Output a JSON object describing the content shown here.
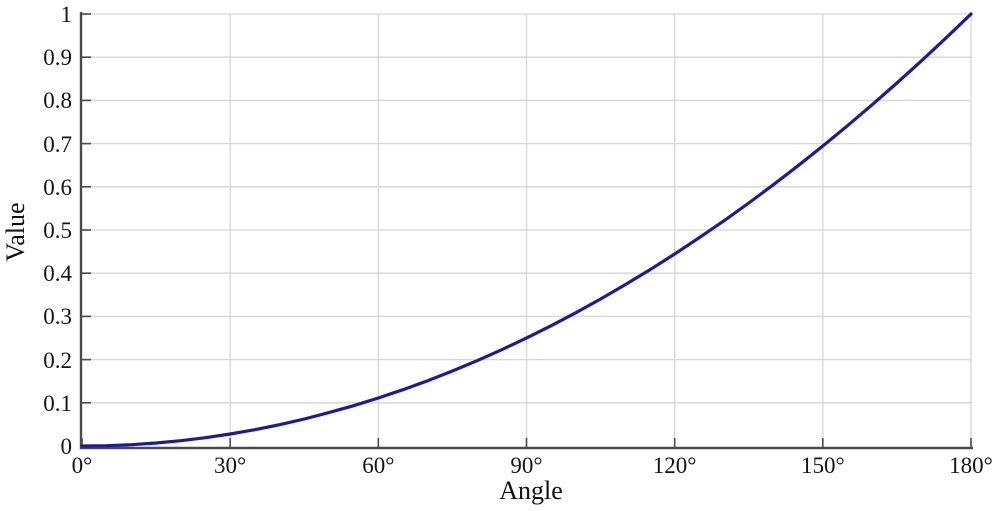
{
  "figure": {
    "background_color": "#ffffff",
    "axis_color": "#4a4a4a",
    "grid_color": "#d6d6d6",
    "tick_color": "#4a4a4a",
    "text_color": "#141414"
  },
  "chart_data": {
    "type": "line",
    "title": "",
    "xlabel": "Angle",
    "ylabel": "Value",
    "xlim": [
      0,
      180
    ],
    "ylim": [
      0,
      1
    ],
    "grid": true,
    "legend": "none",
    "x_tick_values": [
      0,
      30,
      60,
      90,
      120,
      150,
      180
    ],
    "x_tick_labels": [
      "0°",
      "30°",
      "60°",
      "90°",
      "120°",
      "150°",
      "180°"
    ],
    "y_tick_values": [
      0,
      0.1,
      0.2,
      0.3,
      0.4,
      0.5,
      0.6,
      0.7,
      0.8,
      0.9,
      1
    ],
    "y_tick_labels": [
      "0",
      "0.1",
      "0.2",
      "0.3",
      "0.4",
      "0.5",
      "0.6",
      "0.7",
      "0.8",
      "0.9",
      "1"
    ],
    "series": [
      {
        "name": "value-vs-angle-curve",
        "color": "#1b1b9e",
        "description": "monotonically increasing convex curve from (0deg, 0) to (180deg, 1); value = (angle/180)^2",
        "x": [
          0,
          5,
          10,
          15,
          20,
          25,
          30,
          35,
          40,
          45,
          50,
          55,
          60,
          65,
          70,
          75,
          80,
          85,
          90,
          95,
          100,
          105,
          110,
          115,
          120,
          125,
          130,
          135,
          140,
          145,
          150,
          155,
          160,
          165,
          170,
          175,
          180
        ],
        "y": [
          0,
          0.0008,
          0.0031,
          0.0069,
          0.0123,
          0.0193,
          0.0278,
          0.0378,
          0.0494,
          0.0625,
          0.0772,
          0.0934,
          0.1111,
          0.1304,
          0.1512,
          0.1736,
          0.1975,
          0.223,
          0.25,
          0.2785,
          0.3086,
          0.3403,
          0.3735,
          0.4082,
          0.4444,
          0.4823,
          0.5216,
          0.5625,
          0.6049,
          0.6489,
          0.6944,
          0.7415,
          0.7901,
          0.8403,
          0.892,
          0.9452,
          1
        ]
      }
    ]
  }
}
